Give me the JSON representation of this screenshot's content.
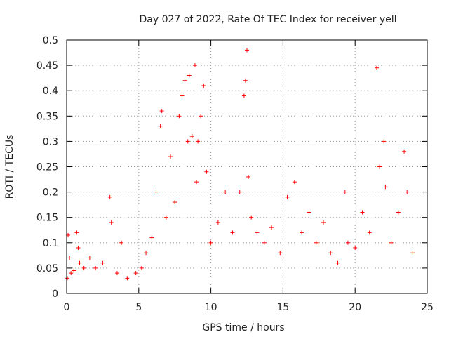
{
  "chart_data": {
    "type": "scatter",
    "title": "Day 027 of 2022, Rate Of TEC Index for receiver yell",
    "xlabel": "GPS time / hours",
    "ylabel": "ROTI / TECUs",
    "xlim": [
      0,
      25
    ],
    "ylim": [
      0,
      0.5
    ],
    "x_ticks": [
      "0",
      "5",
      "10",
      "15",
      "20",
      "25"
    ],
    "y_ticks": [
      "0",
      "0.05",
      "0.1",
      "0.15",
      "0.2",
      "0.25",
      "0.3",
      "0.35",
      "0.4",
      "0.45",
      "0.5"
    ],
    "grid": true,
    "marker": "+",
    "series": [
      {
        "name": "ROTI",
        "color": "#ff0000",
        "x": [
          0.05,
          0.1,
          0.2,
          0.3,
          0.5,
          0.7,
          0.8,
          0.9,
          1.2,
          1.6,
          2.0,
          2.5,
          3.0,
          3.1,
          3.5,
          3.8,
          4.2,
          4.8,
          5.2,
          5.5,
          5.9,
          6.2,
          6.5,
          6.6,
          6.9,
          7.2,
          7.5,
          7.8,
          8.0,
          8.2,
          8.4,
          8.5,
          8.7,
          8.9,
          9.0,
          9.1,
          9.3,
          9.5,
          9.7,
          10.0,
          10.5,
          11.0,
          11.5,
          12.0,
          12.3,
          12.4,
          12.5,
          12.6,
          12.8,
          13.2,
          13.7,
          14.2,
          14.8,
          15.3,
          15.8,
          16.3,
          16.8,
          17.3,
          17.8,
          18.3,
          18.8,
          19.3,
          19.5,
          20.0,
          20.5,
          21.0,
          21.5,
          21.7,
          22.0,
          22.1,
          22.5,
          23.0,
          23.4,
          23.6,
          24.0
        ],
        "y": [
          0.03,
          0.115,
          0.07,
          0.04,
          0.045,
          0.12,
          0.09,
          0.06,
          0.05,
          0.07,
          0.05,
          0.06,
          0.19,
          0.14,
          0.04,
          0.1,
          0.03,
          0.04,
          0.05,
          0.08,
          0.11,
          0.2,
          0.33,
          0.36,
          0.15,
          0.27,
          0.18,
          0.35,
          0.39,
          0.42,
          0.3,
          0.43,
          0.31,
          0.45,
          0.22,
          0.3,
          0.35,
          0.41,
          0.24,
          0.1,
          0.14,
          0.2,
          0.12,
          0.2,
          0.39,
          0.42,
          0.48,
          0.23,
          0.15,
          0.12,
          0.1,
          0.13,
          0.08,
          0.19,
          0.22,
          0.12,
          0.16,
          0.1,
          0.14,
          0.08,
          0.06,
          0.2,
          0.1,
          0.09,
          0.16,
          0.12,
          0.445,
          0.25,
          0.3,
          0.21,
          0.1,
          0.16,
          0.28,
          0.2,
          0.08
        ]
      }
    ]
  }
}
